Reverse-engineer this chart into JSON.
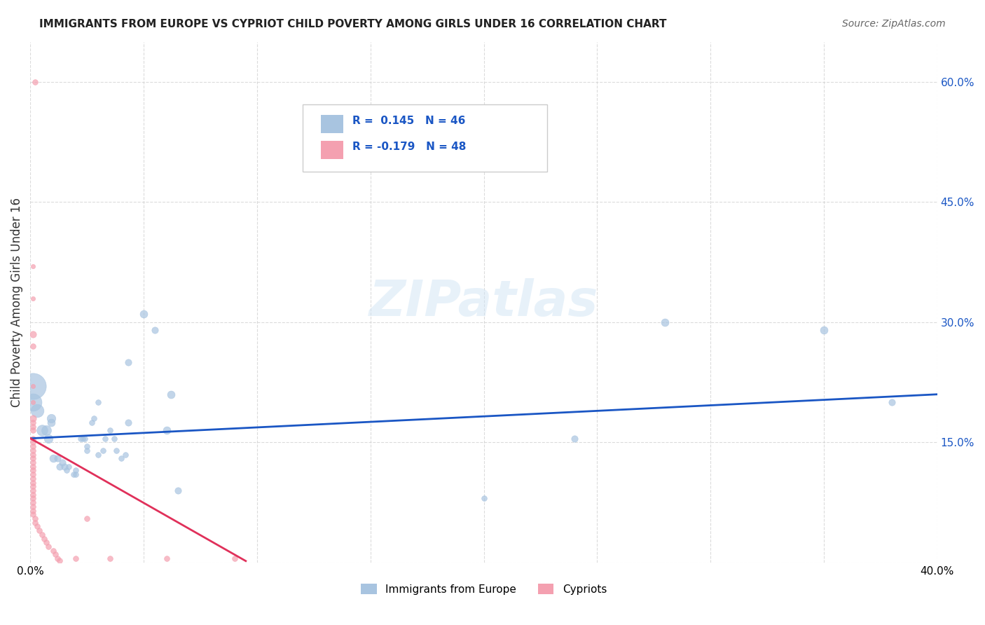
{
  "title": "IMMIGRANTS FROM EUROPE VS CYPRIOT CHILD POVERTY AMONG GIRLS UNDER 16 CORRELATION CHART",
  "source": "Source: ZipAtlas.com",
  "xlabel_bottom": "",
  "ylabel": "Child Poverty Among Girls Under 16",
  "xlim": [
    0.0,
    0.4
  ],
  "ylim": [
    0.0,
    0.65
  ],
  "xticks": [
    0.0,
    0.05,
    0.1,
    0.15,
    0.2,
    0.25,
    0.3,
    0.35,
    0.4
  ],
  "yticks_right": [
    0.15,
    0.3,
    0.45,
    0.6
  ],
  "ytick_labels_right": [
    "15.0%",
    "30.0%",
    "45.0%",
    "60.0%"
  ],
  "xtick_labels": [
    "0.0%",
    "",
    "",
    "",
    "",
    "",
    "",
    "",
    "40.0%"
  ],
  "blue_color": "#a8c4e0",
  "pink_color": "#f4a0b0",
  "blue_line_color": "#1a56c4",
  "pink_line_color": "#e0305a",
  "legend_R1": "R =  0.145",
  "legend_N1": "N = 46",
  "legend_R2": "R = -0.179",
  "legend_N2": "N = 48",
  "watermark": "ZIPatlas",
  "blue_points": [
    [
      0.001,
      0.22,
      120
    ],
    [
      0.001,
      0.2,
      80
    ],
    [
      0.003,
      0.19,
      60
    ],
    [
      0.005,
      0.165,
      50
    ],
    [
      0.007,
      0.165,
      45
    ],
    [
      0.008,
      0.155,
      40
    ],
    [
      0.009,
      0.18,
      40
    ],
    [
      0.009,
      0.175,
      35
    ],
    [
      0.01,
      0.13,
      35
    ],
    [
      0.012,
      0.13,
      30
    ],
    [
      0.013,
      0.12,
      30
    ],
    [
      0.014,
      0.125,
      30
    ],
    [
      0.015,
      0.12,
      30
    ],
    [
      0.016,
      0.115,
      25
    ],
    [
      0.017,
      0.12,
      25
    ],
    [
      0.019,
      0.11,
      25
    ],
    [
      0.02,
      0.115,
      25
    ],
    [
      0.02,
      0.11,
      25
    ],
    [
      0.022,
      0.155,
      25
    ],
    [
      0.023,
      0.155,
      25
    ],
    [
      0.024,
      0.155,
      25
    ],
    [
      0.025,
      0.14,
      25
    ],
    [
      0.025,
      0.145,
      25
    ],
    [
      0.027,
      0.175,
      25
    ],
    [
      0.028,
      0.18,
      25
    ],
    [
      0.03,
      0.2,
      25
    ],
    [
      0.03,
      0.135,
      25
    ],
    [
      0.032,
      0.14,
      25
    ],
    [
      0.033,
      0.155,
      25
    ],
    [
      0.035,
      0.165,
      25
    ],
    [
      0.037,
      0.155,
      25
    ],
    [
      0.038,
      0.14,
      25
    ],
    [
      0.04,
      0.13,
      25
    ],
    [
      0.042,
      0.135,
      25
    ],
    [
      0.043,
      0.175,
      30
    ],
    [
      0.043,
      0.25,
      30
    ],
    [
      0.05,
      0.31,
      35
    ],
    [
      0.055,
      0.29,
      30
    ],
    [
      0.06,
      0.165,
      35
    ],
    [
      0.062,
      0.21,
      35
    ],
    [
      0.065,
      0.09,
      30
    ],
    [
      0.2,
      0.08,
      25
    ],
    [
      0.24,
      0.155,
      30
    ],
    [
      0.28,
      0.3,
      35
    ],
    [
      0.35,
      0.29,
      35
    ],
    [
      0.38,
      0.2,
      30
    ]
  ],
  "pink_points": [
    [
      0.002,
      0.6,
      25
    ],
    [
      0.001,
      0.37,
      20
    ],
    [
      0.001,
      0.33,
      20
    ],
    [
      0.001,
      0.285,
      30
    ],
    [
      0.001,
      0.27,
      25
    ],
    [
      0.001,
      0.22,
      20
    ],
    [
      0.001,
      0.2,
      20
    ],
    [
      0.001,
      0.18,
      30
    ],
    [
      0.001,
      0.175,
      25
    ],
    [
      0.001,
      0.17,
      25
    ],
    [
      0.001,
      0.165,
      25
    ],
    [
      0.001,
      0.155,
      25
    ],
    [
      0.001,
      0.15,
      25
    ],
    [
      0.001,
      0.145,
      25
    ],
    [
      0.001,
      0.14,
      25
    ],
    [
      0.001,
      0.135,
      25
    ],
    [
      0.001,
      0.13,
      25
    ],
    [
      0.001,
      0.125,
      25
    ],
    [
      0.001,
      0.12,
      25
    ],
    [
      0.001,
      0.115,
      25
    ],
    [
      0.001,
      0.11,
      25
    ],
    [
      0.001,
      0.105,
      25
    ],
    [
      0.001,
      0.1,
      25
    ],
    [
      0.001,
      0.095,
      25
    ],
    [
      0.001,
      0.09,
      25
    ],
    [
      0.001,
      0.085,
      25
    ],
    [
      0.001,
      0.08,
      25
    ],
    [
      0.001,
      0.075,
      25
    ],
    [
      0.001,
      0.07,
      25
    ],
    [
      0.001,
      0.065,
      25
    ],
    [
      0.001,
      0.06,
      25
    ],
    [
      0.002,
      0.055,
      25
    ],
    [
      0.002,
      0.05,
      25
    ],
    [
      0.003,
      0.045,
      25
    ],
    [
      0.004,
      0.04,
      25
    ],
    [
      0.005,
      0.035,
      25
    ],
    [
      0.006,
      0.03,
      25
    ],
    [
      0.007,
      0.025,
      25
    ],
    [
      0.008,
      0.02,
      25
    ],
    [
      0.01,
      0.015,
      25
    ],
    [
      0.011,
      0.01,
      25
    ],
    [
      0.012,
      0.005,
      25
    ],
    [
      0.013,
      0.003,
      25
    ],
    [
      0.02,
      0.005,
      25
    ],
    [
      0.025,
      0.055,
      25
    ],
    [
      0.035,
      0.005,
      25
    ],
    [
      0.06,
      0.005,
      25
    ],
    [
      0.09,
      0.005,
      25
    ]
  ]
}
